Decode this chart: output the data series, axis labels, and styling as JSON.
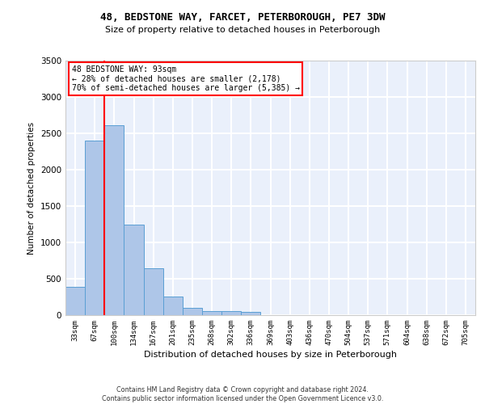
{
  "title_line1": "48, BEDSTONE WAY, FARCET, PETERBOROUGH, PE7 3DW",
  "title_line2": "Size of property relative to detached houses in Peterborough",
  "xlabel": "Distribution of detached houses by size in Peterborough",
  "ylabel": "Number of detached properties",
  "footnote": "Contains HM Land Registry data © Crown copyright and database right 2024.\nContains public sector information licensed under the Open Government Licence v3.0.",
  "bar_labels": [
    "33sqm",
    "67sqm",
    "100sqm",
    "134sqm",
    "167sqm",
    "201sqm",
    "235sqm",
    "268sqm",
    "302sqm",
    "336sqm",
    "369sqm",
    "403sqm",
    "436sqm",
    "470sqm",
    "504sqm",
    "537sqm",
    "571sqm",
    "604sqm",
    "638sqm",
    "672sqm",
    "705sqm"
  ],
  "bar_values": [
    390,
    2400,
    2610,
    1240,
    640,
    255,
    95,
    60,
    55,
    40,
    0,
    0,
    0,
    0,
    0,
    0,
    0,
    0,
    0,
    0,
    0
  ],
  "bar_color": "#aec6e8",
  "bar_edge_color": "#5a9fd4",
  "background_color": "#eaf0fb",
  "grid_color": "#ffffff",
  "vline_x_index": 2,
  "vline_color": "red",
  "ylim": [
    0,
    3500
  ],
  "yticks": [
    0,
    500,
    1000,
    1500,
    2000,
    2500,
    3000,
    3500
  ],
  "annotation_text": "48 BEDSTONE WAY: 93sqm\n← 28% of detached houses are smaller (2,178)\n70% of semi-detached houses are larger (5,385) →",
  "property_sqm": 93
}
